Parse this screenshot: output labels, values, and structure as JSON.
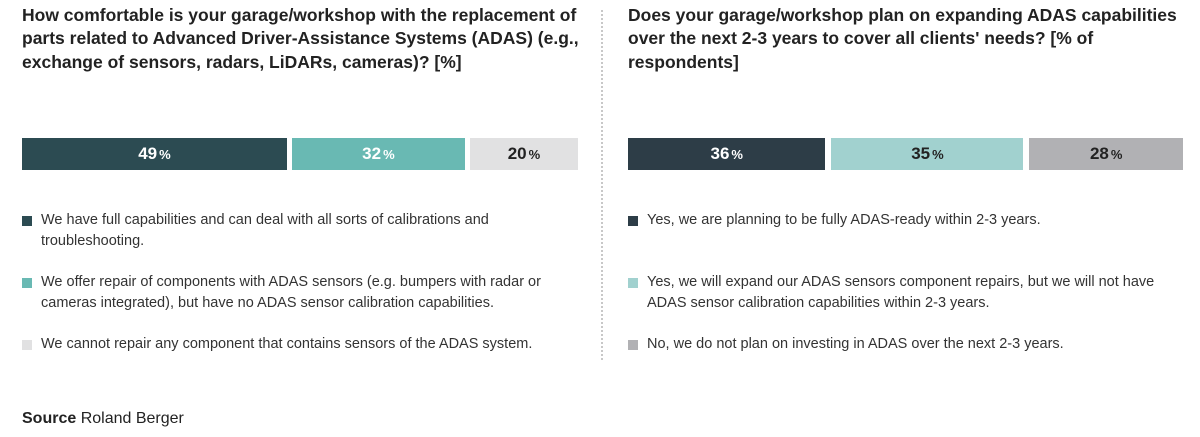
{
  "source": {
    "label": "Source",
    "name": "Roland Berger"
  },
  "chart_data": [
    {
      "type": "bar",
      "stacked": true,
      "orientation": "horizontal",
      "title": "How comfortable is your garage/workshop with the replacement of parts related to Advanced Driver-Assistance Systems (ADAS) (e.g., exchange of sensors, radars, LiDARs, cameras)? [%]",
      "unit": "%",
      "series": [
        {
          "name": "We have full capabilities and can deal with all sorts of calibrations and troubleshooting.",
          "value": 49,
          "color": "#2c4b52",
          "text_color": "#ffffff"
        },
        {
          "name": "We offer repair of components with ADAS sensors (e.g. bumpers with radar or cameras integrated), but have no ADAS sensor calibration capabilities.",
          "value": 32,
          "color": "#69b9b3",
          "text_color": "#ffffff"
        },
        {
          "name": "We cannot repair any component that contains sensors of the ADAS system.",
          "value": 20,
          "color": "#e1e1e2",
          "text_color": "#222222"
        }
      ]
    },
    {
      "type": "bar",
      "stacked": true,
      "orientation": "horizontal",
      "title": "Does your garage/workshop plan on expanding ADAS capabilities over the next 2-3 years to cover all clients' needs? [% of respondents]",
      "unit": "%",
      "series": [
        {
          "name": "Yes, we are planning to be fully ADAS-ready within 2-3 years.",
          "value": 36,
          "color": "#2d3d47",
          "text_color": "#ffffff"
        },
        {
          "name": "Yes, we will expand our ADAS sensors component repairs, but we will not have ADAS sensor calibration capabilities within 2-3 years.",
          "value": 35,
          "color": "#a1d1cf",
          "text_color": "#222222"
        },
        {
          "name": "No, we do not plan on investing in ADAS over the next 2-3 years.",
          "value": 28,
          "color": "#b1b1b4",
          "text_color": "#222222"
        }
      ]
    }
  ]
}
